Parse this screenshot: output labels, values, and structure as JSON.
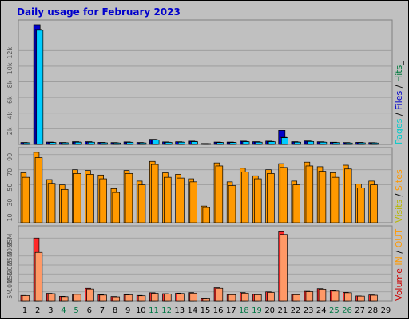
{
  "title": "Daily usage for February 2023",
  "colors": {
    "background": "#c0c0c0",
    "pages": "#0000cc",
    "files": "#0000ff",
    "hits": "#00ccff",
    "visits": "#ff9900",
    "sites": "#ff9900",
    "kbytes": "#ff2a2a",
    "kbytes_out": "#ff9966",
    "weekend": "#007744",
    "weekday": "#000000",
    "title": "#0000cc"
  },
  "legends": {
    "top": [
      {
        "text": "Pages",
        "color": "#00cccc"
      },
      {
        "text": " / ",
        "color": "#000000"
      },
      {
        "text": "Files",
        "color": "#0000cc"
      },
      {
        "text": " / ",
        "color": "#000000"
      },
      {
        "text": "Hits",
        "color": "#007a3d"
      },
      {
        "text": "_",
        "color": "#000000"
      }
    ],
    "middle": [
      {
        "text": "Visits",
        "color": "#b8b800"
      },
      {
        "text": " / ",
        "color": "#000000"
      },
      {
        "text": "Sites",
        "color": "#ff9900"
      }
    ],
    "bottom": [
      {
        "text": "Volume",
        "color": "#cc0000"
      },
      {
        "text": " IN",
        "color": "#ff9900"
      },
      {
        "text": " / ",
        "color": "#000000"
      },
      {
        "text": "OUT",
        "color": "#ff9900"
      }
    ]
  },
  "chart_data": {
    "type": "bar",
    "title": "Daily usage for February 2023",
    "x": [
      "1",
      "2",
      "3",
      "4",
      "5",
      "6",
      "7",
      "8",
      "9",
      "10",
      "11",
      "12",
      "13",
      "14",
      "15",
      "16",
      "17",
      "18",
      "19",
      "20",
      "21",
      "22",
      "23",
      "24",
      "25",
      "26",
      "27",
      "28",
      "29"
    ],
    "weekend_days": [
      "4",
      "5",
      "11",
      "12",
      "18",
      "19",
      "25",
      "26"
    ],
    "panels": [
      {
        "name": "hits",
        "y_ticks": [
          "2k",
          "4k",
          "6k",
          "8k",
          "10k",
          "12k"
        ],
        "ylim": [
          0,
          15500
        ],
        "series": [
          {
            "name": "Hits",
            "values": [
              250,
              15300,
              300,
              250,
              350,
              350,
              260,
              240,
              320,
              250,
              650,
              320,
              340,
              420,
              120,
              300,
              300,
              420,
              350,
              420,
              1800,
              350,
              440,
              340,
              280,
              240,
              260,
              230,
              null
            ]
          },
          {
            "name": "Files",
            "values": [
              220,
              14700,
              260,
              220,
              300,
              300,
              220,
              200,
              280,
              200,
              600,
              280,
              300,
              380,
              100,
              260,
              260,
              380,
              300,
              380,
              900,
              300,
              400,
              300,
              240,
              200,
              220,
              200,
              null
            ]
          },
          {
            "name": "Pages",
            "values": [
              200,
              14600,
              240,
              200,
              280,
              280,
              200,
              180,
              260,
              190,
              560,
              260,
              280,
              350,
              90,
              240,
              240,
              350,
              280,
              350,
              850,
              280,
              370,
              280,
              220,
              180,
              200,
              180,
              null
            ]
          }
        ]
      },
      {
        "name": "visits",
        "y_ticks": [
          "10",
          "30",
          "50",
          "70",
          "90"
        ],
        "ylim": [
          0,
          95
        ],
        "series": [
          {
            "name": "Visits",
            "values": [
              66,
              93,
              57,
              50,
              70,
              69,
              63,
              45,
              69,
              55,
              81,
              66,
              64,
              58,
              22,
              79,
              54,
              72,
              62,
              70,
              78,
              55,
              80,
              74,
              66,
              76,
              51,
              55,
              null
            ]
          },
          {
            "name": "Sites",
            "values": [
              60,
              86,
              52,
              44,
              65,
              64,
              58,
              40,
              65,
              50,
              77,
              60,
              59,
              54,
              20,
              75,
              49,
              67,
              58,
              65,
              73,
              50,
              75,
              68,
              60,
              71,
              46,
              50,
              null
            ]
          }
        ]
      },
      {
        "name": "volume",
        "y_ticks": [
          "5M",
          "10M",
          "15M",
          "20M",
          "25M",
          "30M",
          "35M"
        ],
        "ylim": [
          0,
          40000000
        ],
        "series": [
          {
            "name": "Volume IN",
            "values": [
              3000000,
              35000000,
              4200000,
              2500000,
              3800000,
              7000000,
              3400000,
              2400000,
              3400000,
              3000000,
              4500000,
              4000000,
              4300000,
              4600000,
              1200000,
              7300000,
              3600000,
              4600000,
              3600000,
              5000000,
              38500000,
              3600000,
              5300000,
              6800000,
              5600000,
              4700000,
              2700000,
              3300000,
              null
            ]
          },
          {
            "name": "Volume OUT",
            "values": [
              2900000,
              27000000,
              4000000,
              2300000,
              3600000,
              6600000,
              3200000,
              2200000,
              3300000,
              2800000,
              4200000,
              3800000,
              4100000,
              4300000,
              1100000,
              7000000,
              3400000,
              4300000,
              3400000,
              4700000,
              37000000,
              3400000,
              5100000,
              6500000,
              5400000,
              4500000,
              2600000,
              3100000,
              null
            ]
          }
        ]
      }
    ]
  }
}
